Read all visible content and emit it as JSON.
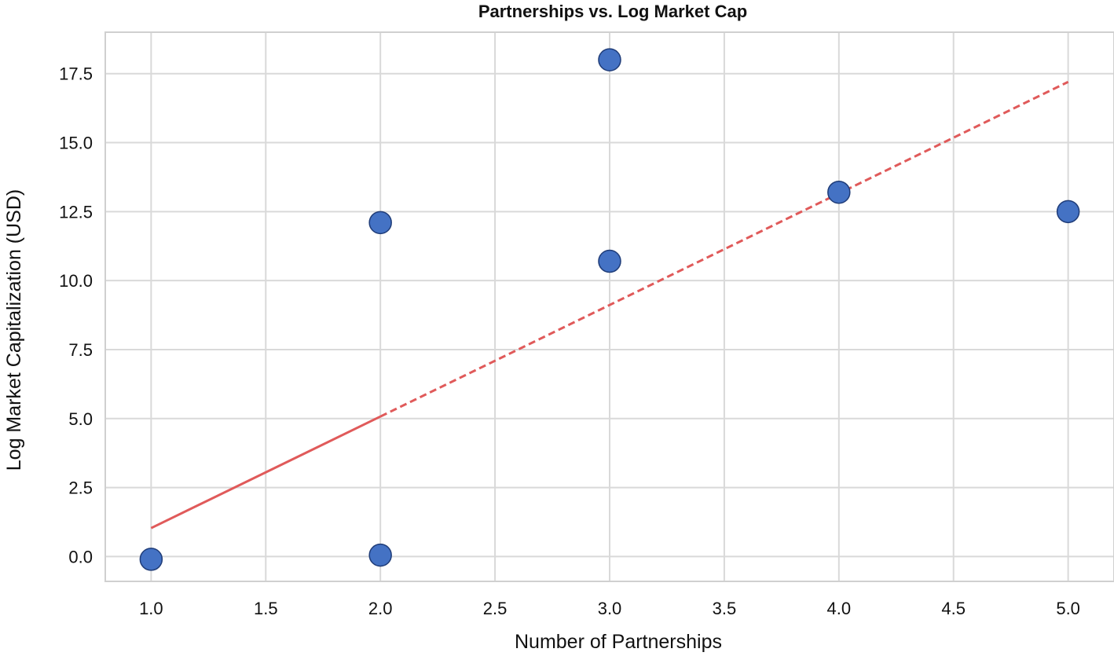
{
  "chart_data": {
    "type": "scatter",
    "title": "Partnerships vs. Log Market Cap",
    "xlabel": "Number of Partnerships",
    "ylabel": "Log Market Capitalization (USD)",
    "xlim": [
      0.8,
      5.2
    ],
    "ylim": [
      -0.9,
      19.0
    ],
    "xticks": [
      1.0,
      1.5,
      2.0,
      2.5,
      3.0,
      3.5,
      4.0,
      4.5,
      5.0
    ],
    "yticks": [
      0.0,
      2.5,
      5.0,
      7.5,
      10.0,
      12.5,
      15.0,
      17.5
    ],
    "grid": true,
    "points": [
      {
        "x": 1.0,
        "y": -0.1
      },
      {
        "x": 2.0,
        "y": 0.05
      },
      {
        "x": 2.0,
        "y": 12.1
      },
      {
        "x": 3.0,
        "y": 18.0
      },
      {
        "x": 3.0,
        "y": 10.7
      },
      {
        "x": 4.0,
        "y": 13.2
      },
      {
        "x": 5.0,
        "y": 12.5
      }
    ],
    "trendline": {
      "x": [
        1.0,
        5.0
      ],
      "y": [
        1.03,
        17.2
      ],
      "solid_until_x": 2.0
    },
    "point_color": "#4472c4",
    "point_edge": "#1f3c78",
    "trend_color": "#e05a5a"
  }
}
